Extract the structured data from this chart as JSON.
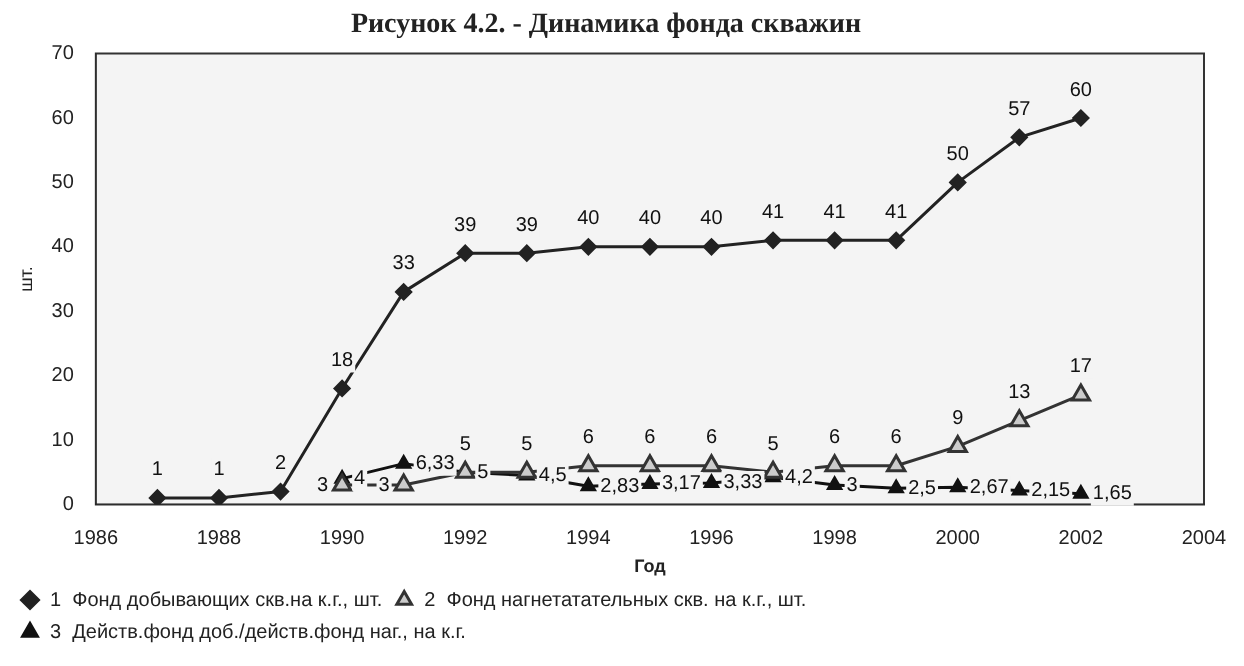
{
  "chart_data": {
    "type": "line",
    "title": "Рисунок 4.2. - Динамика фонда скважин",
    "xlabel": "Год",
    "ylabel": "шт.",
    "xlim": [
      1986,
      2004
    ],
    "xticks": [
      1986,
      1988,
      1990,
      1992,
      1994,
      1996,
      1998,
      2000,
      2002,
      2004
    ],
    "ylim": [
      0,
      70
    ],
    "yticks": [
      0,
      10,
      20,
      30,
      40,
      50,
      60,
      70
    ],
    "grid": false,
    "legend": "bottom",
    "line_style": "solid",
    "series": [
      {
        "name": "1  Фонд добывающих скв.на к.г., шт.",
        "color": "#222222",
        "marker": "diamond",
        "x": [
          1987,
          1988,
          1989,
          1990,
          1991,
          1992,
          1993,
          1994,
          1995,
          1996,
          1997,
          1998,
          1999,
          2000,
          2001,
          2002
        ],
        "values": [
          1,
          1,
          2,
          18,
          33,
          39,
          39,
          40,
          40,
          40,
          41,
          41,
          41,
          50,
          57,
          60
        ],
        "value_labels": [
          "1",
          "1",
          "2",
          "18",
          "33",
          "39",
          "39",
          "40",
          "40",
          "40",
          "41",
          "41",
          "41",
          "50",
          "57",
          "60"
        ]
      },
      {
        "name": "2  Фонд нагнетатательных скв. на к.г., шт.",
        "color": "#333333",
        "marker": "triangle",
        "x": [
          1990,
          1991,
          1992,
          1993,
          1994,
          1995,
          1996,
          1997,
          1998,
          1999,
          2000,
          2001,
          2002
        ],
        "values": [
          3,
          3,
          5,
          5,
          6,
          6,
          6,
          5,
          6,
          6,
          9,
          13,
          17
        ],
        "value_labels": [
          "3",
          "3",
          "5",
          "5",
          "6",
          "6",
          "6",
          "5",
          "6",
          "6",
          "9",
          "13",
          "17"
        ]
      },
      {
        "name": "3  Действ.фонд доб./действ.фонд наг., на к.г.",
        "color": "#111111",
        "marker": "triangle",
        "x": [
          1990,
          1991,
          1992,
          1993,
          1994,
          1995,
          1996,
          1997,
          1998,
          1999,
          2000,
          2001,
          2002
        ],
        "values": [
          4,
          6.33,
          5,
          4.5,
          2.83,
          3.17,
          3.33,
          4.2,
          3,
          2.5,
          2.67,
          2.15,
          1.65
        ],
        "value_labels": [
          "4",
          "6,33",
          "5",
          "4,5",
          "2,83",
          "3,17",
          "3,33",
          "4,2",
          "3",
          "2,5",
          "2,67",
          "2,15",
          "1,65"
        ]
      }
    ]
  }
}
